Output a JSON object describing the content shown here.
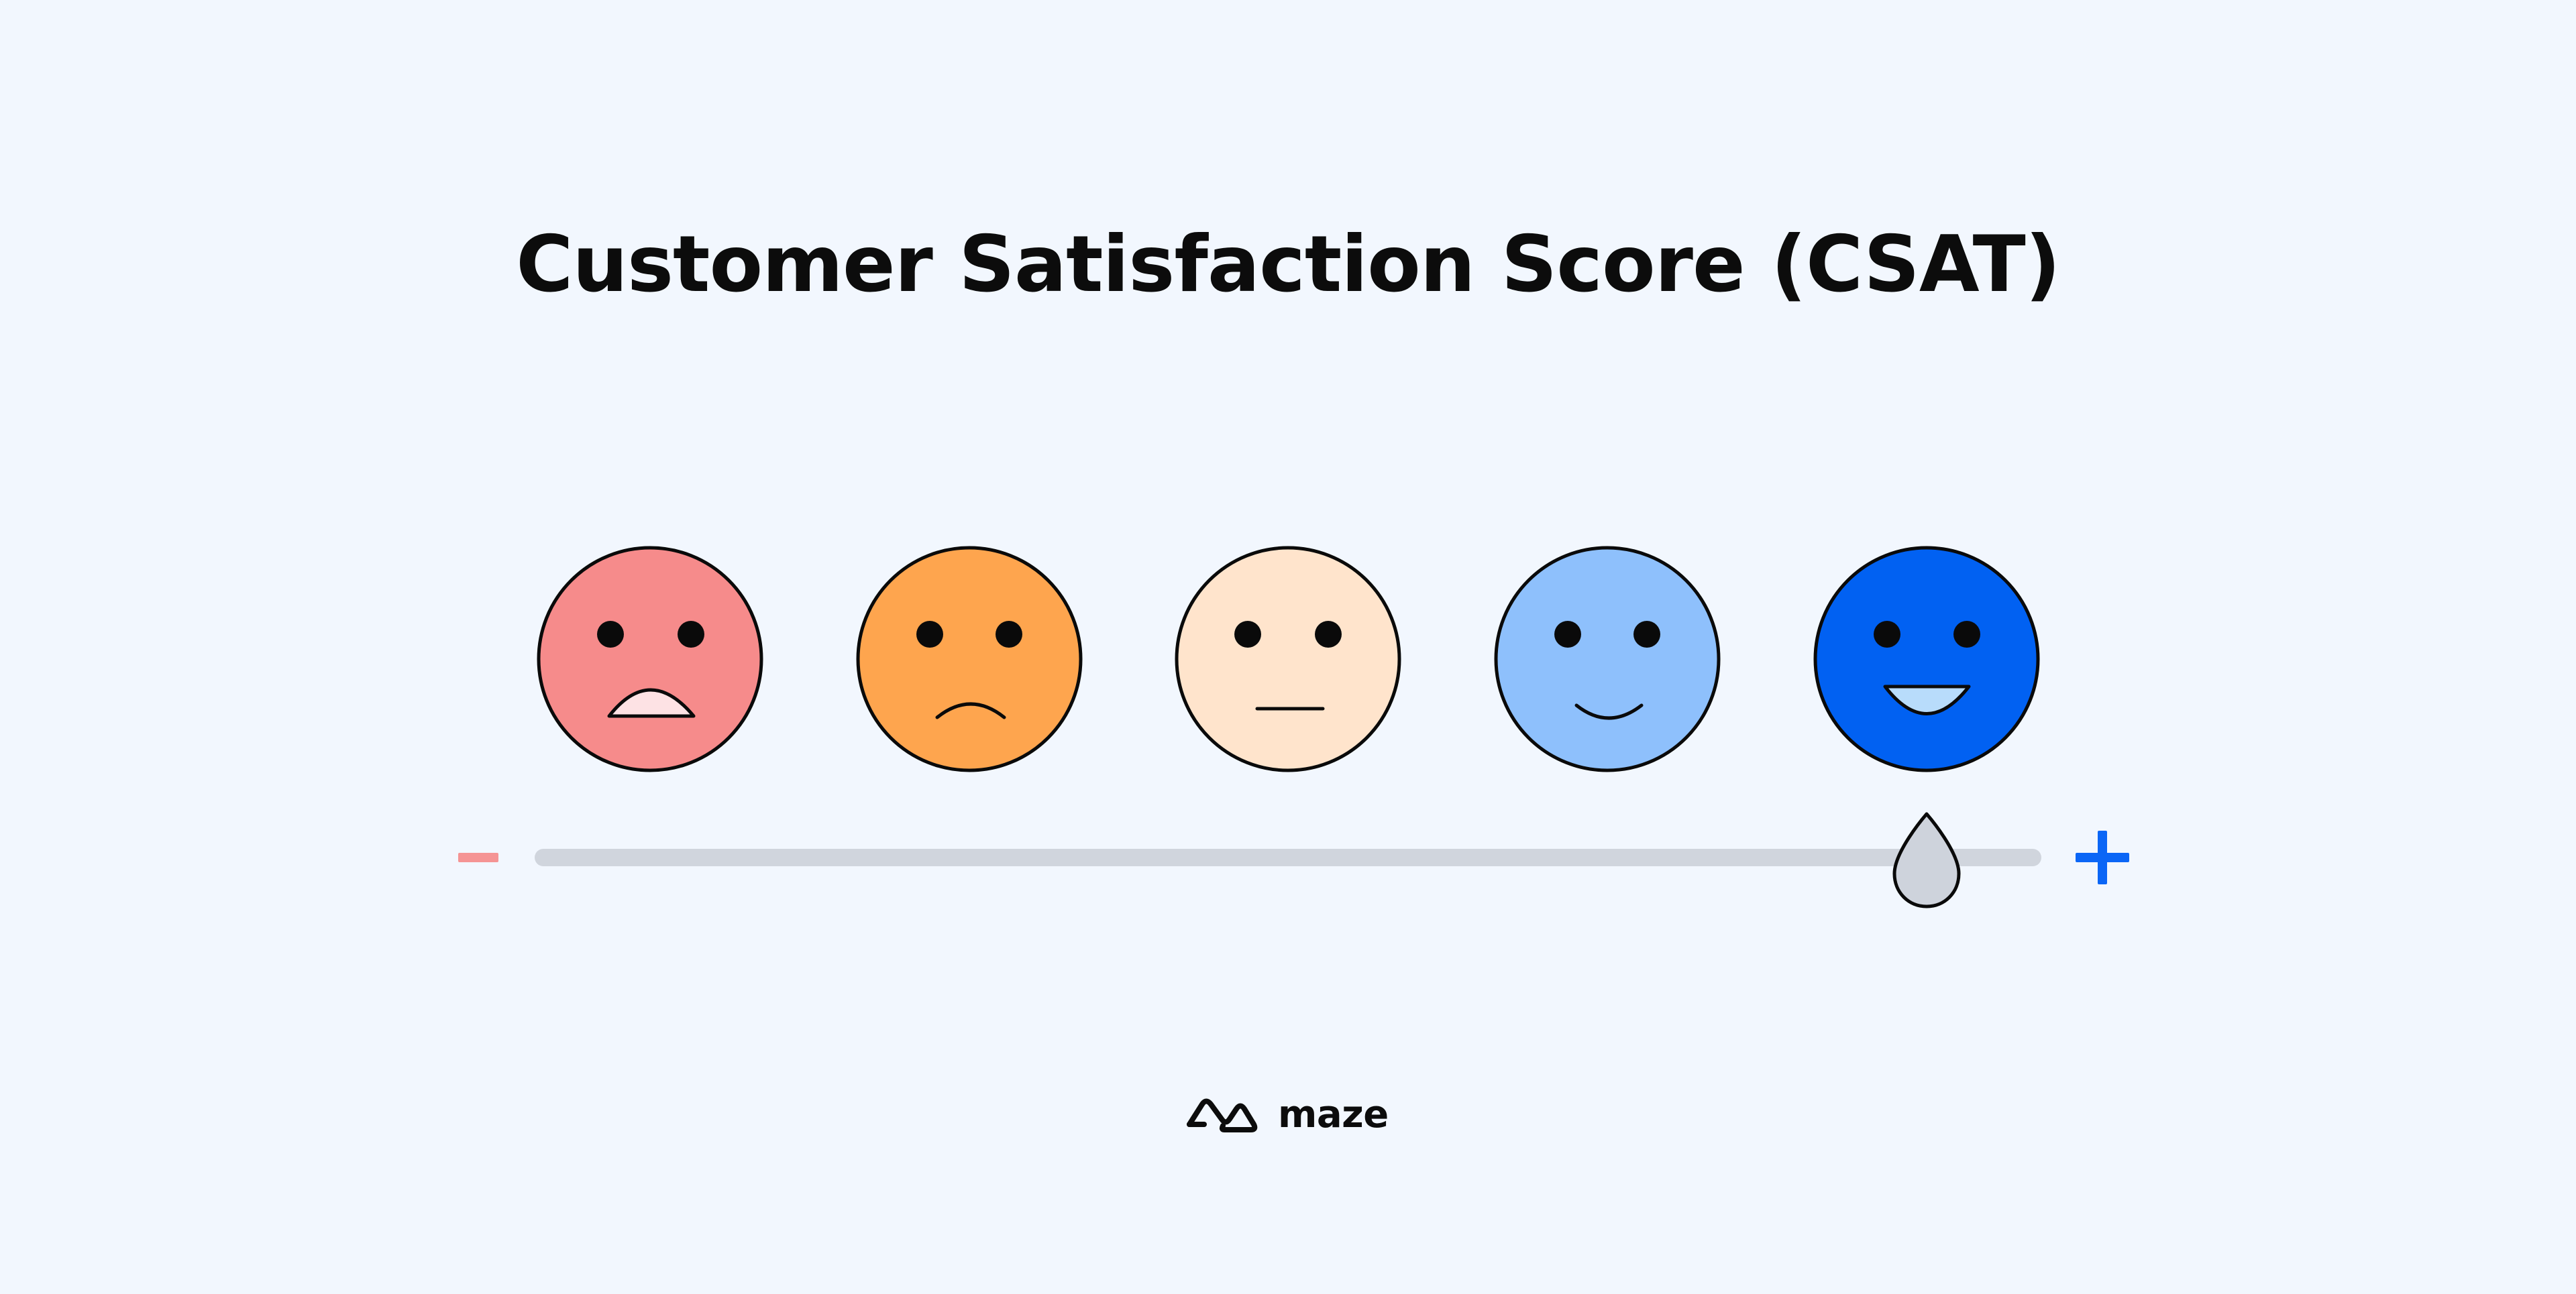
{
  "title": "Customer Satisfaction Score (CSAT)",
  "scale": {
    "levels": [
      {
        "mood": "very-unsatisfied",
        "color": "#f68b8b"
      },
      {
        "mood": "unsatisfied",
        "color": "#fea54e"
      },
      {
        "mood": "neutral",
        "color": "#ffe4cc"
      },
      {
        "mood": "satisfied",
        "color": "#8ec0fc"
      },
      {
        "mood": "very-satisfied",
        "color": "#0161f2"
      }
    ],
    "slider": {
      "selected_level": 5,
      "level_count": 5
    },
    "minus_color": "#f59494",
    "plus_color": "#0b66f6",
    "track_color": "#d0d5dd",
    "handle_color": "#ced3dc"
  },
  "brand": {
    "name": "maze",
    "icon": "maze-logo-icon"
  }
}
